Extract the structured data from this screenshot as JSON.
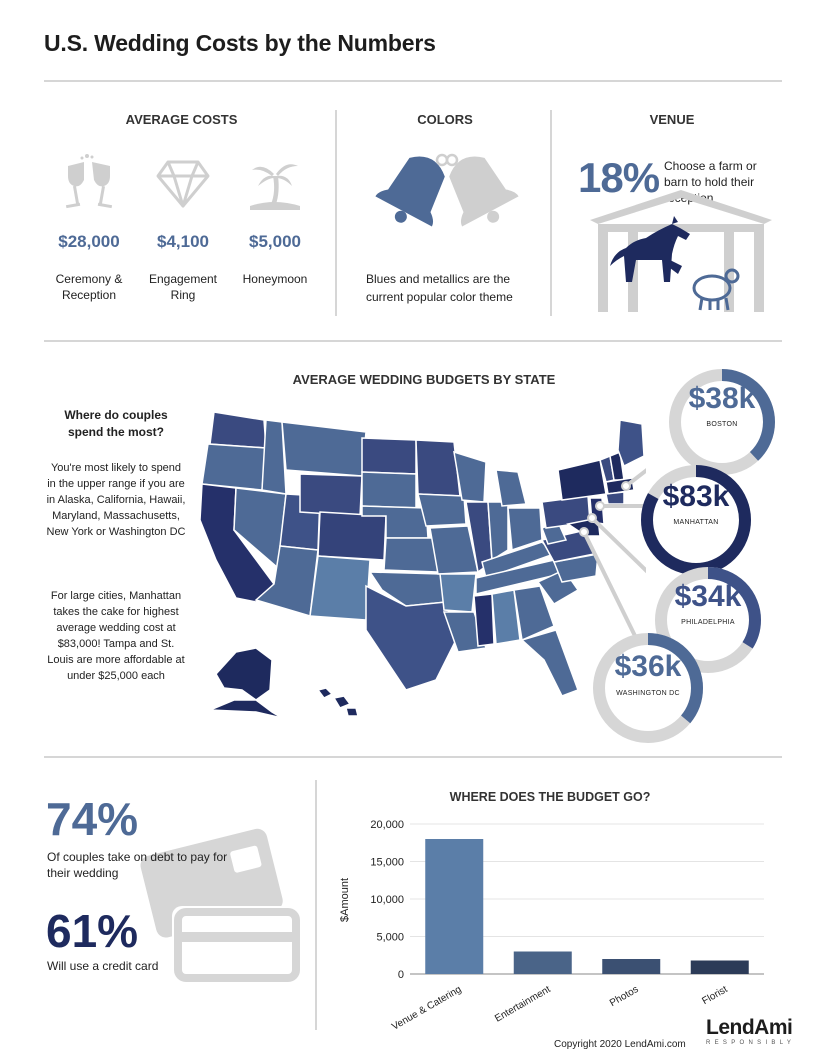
{
  "title": "U.S. Wedding Costs by the Numbers",
  "avg_costs": {
    "heading": "AVERAGE COSTS",
    "items": [
      {
        "icon": "champagne-glasses-icon",
        "value": "$28,000",
        "label": "Ceremony & Reception"
      },
      {
        "icon": "diamond-icon",
        "value": "$4,100",
        "label": "Engagement Ring"
      },
      {
        "icon": "palm-tree-icon",
        "value": "$5,000",
        "label": "Honeymoon"
      }
    ]
  },
  "colors": {
    "heading": "COLORS",
    "text": "Blues and metallics are the current popular color theme",
    "icon": "wedding-bells-icon"
  },
  "venue": {
    "heading": "VENUE",
    "pct": "18%",
    "text": "Choose a farm or barn to hold their reception",
    "icon": "barn-horse-sheep-icon"
  },
  "map_section": {
    "heading": "AVERAGE WEDDING BUDGETS BY STATE",
    "question": "Where do couples spend the most?",
    "para1": "You're most likely to spend in the upper range if you are in Alaska, California, Hawaii, Maryland, Massachusetts, New York or Washington DC",
    "para2": "For large cities, Manhattan takes the cake for highest average wedding cost at $83,000! Tampa and St. Louis are more affordable at under $25,000 each",
    "cities": [
      {
        "value": "$38k",
        "label": "BOSTON",
        "fraction": 0.38
      },
      {
        "value": "$83k",
        "label": "MANHATTAN",
        "fraction": 0.83
      },
      {
        "value": "$34k",
        "label": "PHILADELPHIA",
        "fraction": 0.34
      },
      {
        "value": "$36k",
        "label": "WASHINGTON DC",
        "fraction": 0.36
      }
    ]
  },
  "debt": {
    "pct1": "74%",
    "text1": "Of couples take on debt to pay for their wedding",
    "pct2": "61%",
    "text2": "Will use a credit card",
    "icon": "credit-card-icon"
  },
  "colors_palette": {
    "primary": "#4e6a96",
    "navy": "#1e2a5e",
    "gray": "#d6d6d6"
  },
  "chart_data": {
    "type": "bar",
    "title": "WHERE DOES THE BUDGET GO?",
    "ylabel": "$Amount",
    "xlabel": "",
    "categories": [
      "Venue & Catering",
      "Entertainment",
      "Photos",
      "Florist"
    ],
    "values": [
      18000,
      3000,
      2000,
      1800
    ],
    "colors": [
      "#5b7ea8",
      "#4a6488",
      "#3b5072",
      "#2c3b58"
    ],
    "ylim": [
      0,
      20000
    ],
    "yticks": [
      "0",
      "5,000",
      "10,000",
      "15,000",
      "20,000"
    ],
    "grid": true
  },
  "footer": {
    "copyright": "Copyright 2020 LendAmi.com",
    "logo_text": "LendAmi",
    "logo_tagline": "RESPONSIBLY"
  }
}
